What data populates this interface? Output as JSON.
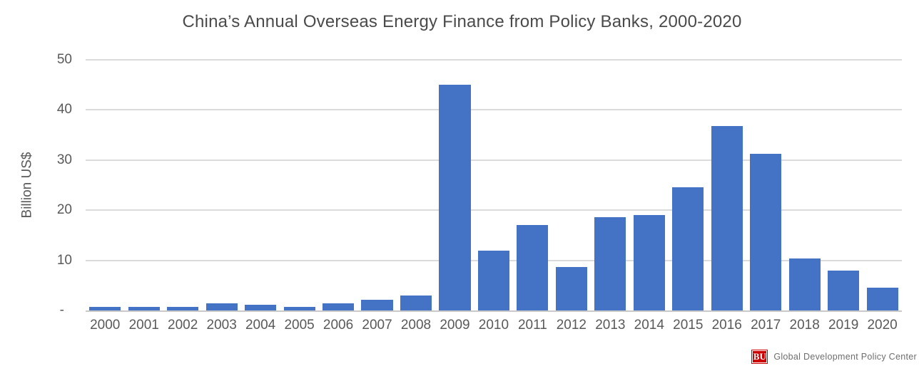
{
  "chart_data": {
    "type": "bar",
    "title": "China’s Annual Overseas Energy Finance from Policy Banks, 2000-2020",
    "xlabel": "",
    "ylabel": "Billion US$",
    "ylim": [
      0,
      50
    ],
    "grid": "horizontal",
    "legend_position": "none",
    "bar_color": "#4472C4",
    "categories": [
      "2000",
      "2001",
      "2002",
      "2003",
      "2004",
      "2005",
      "2006",
      "2007",
      "2008",
      "2009",
      "2010",
      "2011",
      "2012",
      "2013",
      "2014",
      "2015",
      "2016",
      "2017",
      "2018",
      "2019",
      "2020"
    ],
    "values": [
      0.7,
      0.7,
      0.7,
      1.4,
      1.1,
      0.7,
      1.4,
      2.1,
      3.0,
      45.0,
      11.9,
      17.0,
      8.6,
      18.6,
      19.0,
      24.6,
      36.8,
      31.3,
      10.4,
      8.0,
      4.5
    ],
    "y_ticks": [
      {
        "label": "50",
        "value": 50
      },
      {
        "label": "40",
        "value": 40
      },
      {
        "label": "30",
        "value": 30
      },
      {
        "label": "20",
        "value": 20
      },
      {
        "label": "10",
        "value": 10
      },
      {
        "label": "-",
        "value": 0
      }
    ]
  },
  "branding": {
    "logo_text": "BU",
    "logo_color": "#CC0000",
    "org_name": "Global Development Policy Center"
  }
}
